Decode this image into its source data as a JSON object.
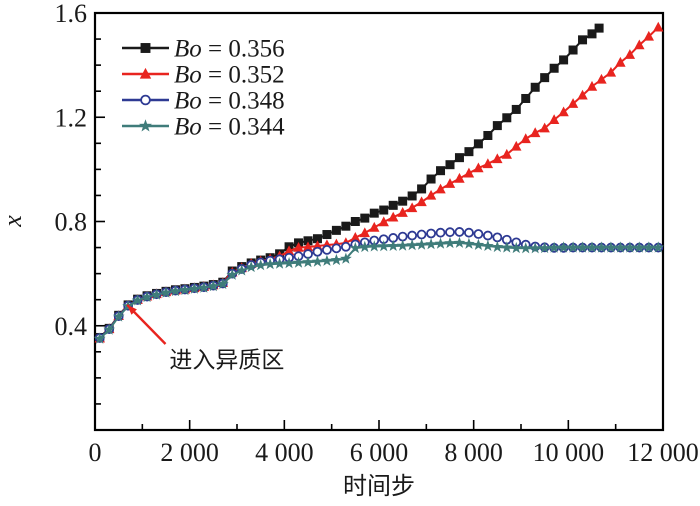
{
  "figure": {
    "background_color": "#ffffff",
    "y_axis": {
      "title": "x",
      "tick_labels": [
        "0.4",
        "0.8",
        "1.2",
        "1.6"
      ],
      "tick_values": [
        0.4,
        0.8,
        1.2,
        1.6
      ],
      "minor_step": 0.1,
      "range": [
        0,
        1.6
      ]
    },
    "x_axis": {
      "title": "时间步",
      "tick_labels": [
        "0",
        "2 000",
        "4 000",
        "6 000",
        "8 000",
        "10 000",
        "12 000"
      ],
      "tick_values": [
        0,
        2000,
        4000,
        6000,
        8000,
        10000,
        12000
      ],
      "minor_step": 1000,
      "range": [
        0,
        12000
      ]
    },
    "legend": {
      "position": "top-left",
      "entries": [
        {
          "label": "Bo = 0.356",
          "marker": "square",
          "color": "#1a1a1a"
        },
        {
          "label": "Bo = 0.352",
          "marker": "triangle",
          "color": "#e8241f"
        },
        {
          "label": "Bo = 0.348",
          "marker": "circle-open",
          "color": "#2e3a93"
        },
        {
          "label": "Bo = 0.344",
          "marker": "star",
          "color": "#3f7c7a"
        }
      ]
    },
    "annotation": {
      "text": "进入异质区",
      "arrow_color": "#e8241f"
    }
  },
  "chart_data": {
    "type": "line",
    "title": "",
    "xlabel": "时间步",
    "ylabel": "x",
    "xlim": [
      0,
      12000
    ],
    "ylim": [
      0,
      1.6
    ],
    "grid": false,
    "legend_position": "top-left",
    "annotation": {
      "text": "进入异质区",
      "arrow_tip": {
        "x": 680,
        "y": 0.48
      },
      "arrow_tail": {
        "x": 1490,
        "y": 0.33
      },
      "text_at": {
        "x": 1570,
        "y": 0.24
      }
    },
    "series": [
      {
        "name": "Bo = 0.356",
        "marker": "square",
        "color": "#1a1a1a",
        "points": [
          [
            100,
            0.355
          ],
          [
            300,
            0.39
          ],
          [
            500,
            0.44
          ],
          [
            700,
            0.48
          ],
          [
            900,
            0.502
          ],
          [
            1100,
            0.515
          ],
          [
            1300,
            0.524
          ],
          [
            1500,
            0.532
          ],
          [
            1700,
            0.538
          ],
          [
            1900,
            0.542
          ],
          [
            2100,
            0.547
          ],
          [
            2300,
            0.552
          ],
          [
            2500,
            0.558
          ],
          [
            2700,
            0.567
          ],
          [
            2900,
            0.61
          ],
          [
            3100,
            0.627
          ],
          [
            3300,
            0.641
          ],
          [
            3500,
            0.652
          ],
          [
            3700,
            0.661
          ],
          [
            3900,
            0.676
          ],
          [
            4100,
            0.703
          ],
          [
            4300,
            0.718
          ],
          [
            4500,
            0.726
          ],
          [
            4700,
            0.734
          ],
          [
            4900,
            0.75
          ],
          [
            5100,
            0.766
          ],
          [
            5300,
            0.782
          ],
          [
            5500,
            0.8
          ],
          [
            5700,
            0.813
          ],
          [
            5900,
            0.832
          ],
          [
            6100,
            0.844
          ],
          [
            6300,
            0.862
          ],
          [
            6500,
            0.878
          ],
          [
            6700,
            0.898
          ],
          [
            6900,
            0.925
          ],
          [
            7100,
            0.963
          ],
          [
            7300,
            0.995
          ],
          [
            7500,
            1.018
          ],
          [
            7700,
            1.045
          ],
          [
            7900,
            1.068
          ],
          [
            8100,
            1.098
          ],
          [
            8300,
            1.13
          ],
          [
            8500,
            1.168
          ],
          [
            8700,
            1.198
          ],
          [
            8900,
            1.23
          ],
          [
            9100,
            1.272
          ],
          [
            9300,
            1.315
          ],
          [
            9500,
            1.352
          ],
          [
            9700,
            1.388
          ],
          [
            9900,
            1.42
          ],
          [
            10100,
            1.458
          ],
          [
            10300,
            1.497
          ],
          [
            10500,
            1.52
          ],
          [
            10650,
            1.542
          ]
        ]
      },
      {
        "name": "Bo = 0.352",
        "marker": "triangle",
        "color": "#e8241f",
        "points": [
          [
            100,
            0.352
          ],
          [
            300,
            0.388
          ],
          [
            500,
            0.438
          ],
          [
            700,
            0.478
          ],
          [
            900,
            0.5
          ],
          [
            1100,
            0.513
          ],
          [
            1300,
            0.522
          ],
          [
            1500,
            0.53
          ],
          [
            1700,
            0.536
          ],
          [
            1900,
            0.54
          ],
          [
            2100,
            0.545
          ],
          [
            2300,
            0.55
          ],
          [
            2500,
            0.556
          ],
          [
            2700,
            0.565
          ],
          [
            2900,
            0.605
          ],
          [
            3100,
            0.622
          ],
          [
            3300,
            0.638
          ],
          [
            3500,
            0.648
          ],
          [
            3700,
            0.656
          ],
          [
            3900,
            0.667
          ],
          [
            4100,
            0.687
          ],
          [
            4300,
            0.7
          ],
          [
            4500,
            0.702
          ],
          [
            4700,
            0.706
          ],
          [
            4900,
            0.71
          ],
          [
            5100,
            0.713
          ],
          [
            5300,
            0.718
          ],
          [
            5500,
            0.738
          ],
          [
            5700,
            0.756
          ],
          [
            5900,
            0.777
          ],
          [
            6100,
            0.798
          ],
          [
            6300,
            0.816
          ],
          [
            6500,
            0.834
          ],
          [
            6700,
            0.852
          ],
          [
            6900,
            0.875
          ],
          [
            7100,
            0.9
          ],
          [
            7300,
            0.924
          ],
          [
            7500,
            0.945
          ],
          [
            7700,
            0.965
          ],
          [
            7900,
            0.985
          ],
          [
            8100,
            1.005
          ],
          [
            8300,
            1.021
          ],
          [
            8500,
            1.04
          ],
          [
            8700,
            1.057
          ],
          [
            8900,
            1.088
          ],
          [
            9100,
            1.117
          ],
          [
            9300,
            1.14
          ],
          [
            9500,
            1.158
          ],
          [
            9700,
            1.19
          ],
          [
            9900,
            1.22
          ],
          [
            10100,
            1.252
          ],
          [
            10300,
            1.284
          ],
          [
            10500,
            1.318
          ],
          [
            10700,
            1.345
          ],
          [
            10900,
            1.372
          ],
          [
            11100,
            1.41
          ],
          [
            11300,
            1.44
          ],
          [
            11500,
            1.477
          ],
          [
            11700,
            1.51
          ],
          [
            11900,
            1.545
          ]
        ]
      },
      {
        "name": "Bo = 0.348",
        "marker": "circle-open",
        "color": "#2e3a93",
        "points": [
          [
            100,
            0.353
          ],
          [
            300,
            0.387
          ],
          [
            500,
            0.437
          ],
          [
            700,
            0.477
          ],
          [
            900,
            0.499
          ],
          [
            1100,
            0.512
          ],
          [
            1300,
            0.521
          ],
          [
            1500,
            0.529
          ],
          [
            1700,
            0.535
          ],
          [
            1900,
            0.539
          ],
          [
            2100,
            0.544
          ],
          [
            2300,
            0.548
          ],
          [
            2500,
            0.554
          ],
          [
            2700,
            0.562
          ],
          [
            2900,
            0.6
          ],
          [
            3100,
            0.618
          ],
          [
            3300,
            0.633
          ],
          [
            3500,
            0.643
          ],
          [
            3700,
            0.65
          ],
          [
            3900,
            0.655
          ],
          [
            4100,
            0.661
          ],
          [
            4300,
            0.667
          ],
          [
            4500,
            0.675
          ],
          [
            4700,
            0.684
          ],
          [
            4900,
            0.691
          ],
          [
            5100,
            0.697
          ],
          [
            5300,
            0.703
          ],
          [
            5500,
            0.712
          ],
          [
            5700,
            0.72
          ],
          [
            5900,
            0.727
          ],
          [
            6100,
            0.732
          ],
          [
            6300,
            0.737
          ],
          [
            6500,
            0.742
          ],
          [
            6700,
            0.746
          ],
          [
            6900,
            0.75
          ],
          [
            7100,
            0.754
          ],
          [
            7300,
            0.757
          ],
          [
            7500,
            0.759
          ],
          [
            7700,
            0.76
          ],
          [
            7900,
            0.757
          ],
          [
            8100,
            0.752
          ],
          [
            8300,
            0.746
          ],
          [
            8500,
            0.739
          ],
          [
            8700,
            0.73
          ],
          [
            8900,
            0.72
          ],
          [
            9100,
            0.711
          ],
          [
            9300,
            0.704
          ],
          [
            9500,
            0.701
          ],
          [
            9700,
            0.699
          ],
          [
            9900,
            0.699
          ],
          [
            10100,
            0.7
          ],
          [
            10300,
            0.7
          ],
          [
            10500,
            0.7
          ],
          [
            10700,
            0.7
          ],
          [
            10900,
            0.7
          ],
          [
            11100,
            0.7
          ],
          [
            11300,
            0.7
          ],
          [
            11500,
            0.7
          ],
          [
            11700,
            0.7
          ],
          [
            11900,
            0.7
          ]
        ]
      },
      {
        "name": "Bo = 0.344",
        "marker": "star",
        "color": "#3f7c7a",
        "points": [
          [
            100,
            0.35
          ],
          [
            300,
            0.385
          ],
          [
            500,
            0.435
          ],
          [
            700,
            0.475
          ],
          [
            900,
            0.497
          ],
          [
            1100,
            0.51
          ],
          [
            1300,
            0.519
          ],
          [
            1500,
            0.527
          ],
          [
            1700,
            0.533
          ],
          [
            1900,
            0.537
          ],
          [
            2100,
            0.542
          ],
          [
            2300,
            0.546
          ],
          [
            2500,
            0.552
          ],
          [
            2700,
            0.56
          ],
          [
            2900,
            0.595
          ],
          [
            3100,
            0.612
          ],
          [
            3300,
            0.625
          ],
          [
            3500,
            0.632
          ],
          [
            3700,
            0.636
          ],
          [
            3900,
            0.638
          ],
          [
            4100,
            0.64
          ],
          [
            4300,
            0.642
          ],
          [
            4500,
            0.644
          ],
          [
            4700,
            0.646
          ],
          [
            4900,
            0.649
          ],
          [
            5100,
            0.652
          ],
          [
            5300,
            0.657
          ],
          [
            5500,
            0.698
          ],
          [
            5700,
            0.702
          ],
          [
            5900,
            0.704
          ],
          [
            6100,
            0.705
          ],
          [
            6300,
            0.706
          ],
          [
            6500,
            0.707
          ],
          [
            6700,
            0.709
          ],
          [
            6900,
            0.711
          ],
          [
            7100,
            0.713
          ],
          [
            7300,
            0.715
          ],
          [
            7500,
            0.717
          ],
          [
            7700,
            0.718
          ],
          [
            7900,
            0.714
          ],
          [
            8100,
            0.71
          ],
          [
            8300,
            0.706
          ],
          [
            8500,
            0.702
          ],
          [
            8700,
            0.7
          ],
          [
            8900,
            0.698
          ],
          [
            9100,
            0.697
          ],
          [
            9300,
            0.697
          ],
          [
            9500,
            0.698
          ],
          [
            9700,
            0.699
          ],
          [
            9900,
            0.7
          ],
          [
            10100,
            0.7
          ],
          [
            10300,
            0.7
          ],
          [
            10500,
            0.7
          ],
          [
            10700,
            0.7
          ],
          [
            10900,
            0.7
          ],
          [
            11100,
            0.7
          ],
          [
            11300,
            0.7
          ],
          [
            11500,
            0.7
          ],
          [
            11700,
            0.7
          ],
          [
            11900,
            0.7
          ]
        ]
      }
    ]
  }
}
